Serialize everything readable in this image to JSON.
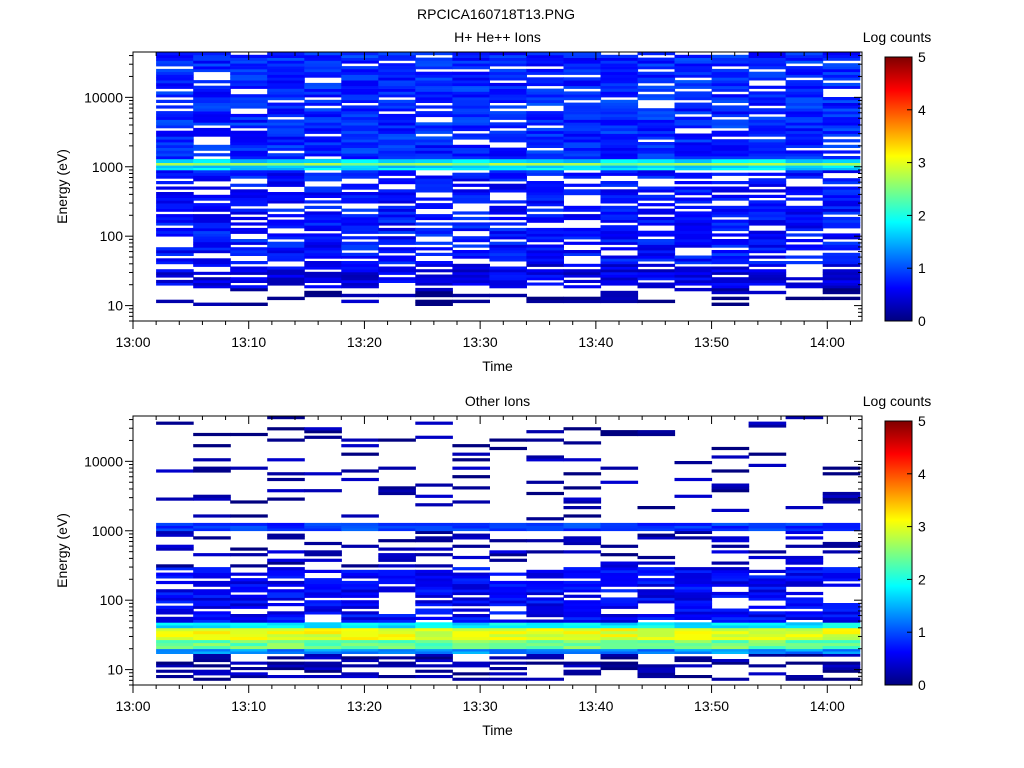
{
  "title": "RPCICA160718T13.PNG",
  "colors": {
    "background": "#ffffff",
    "axis": "#000000",
    "colormap": [
      "#00007f",
      "#0000ff",
      "#007fff",
      "#00ffff",
      "#7fff7f",
      "#ffff00",
      "#ff7f00",
      "#ff0000",
      "#7f0000"
    ]
  },
  "chart_data": [
    {
      "type": "heatmap",
      "title": "H+ He++ Ions",
      "xlabel": "Time",
      "ylabel": "Energy (eV)",
      "yscale": "log",
      "xlim": [
        "13:00",
        "14:03"
      ],
      "ylim": [
        6,
        45000
      ],
      "x_ticks": [
        "13:00",
        "13:10",
        "13:20",
        "13:30",
        "13:40",
        "13:50",
        "14:00"
      ],
      "y_ticks": [
        "10",
        "100",
        "1000",
        "10000"
      ],
      "colorbar": {
        "label": "Log counts",
        "range": [
          0,
          5
        ],
        "ticks": [
          "0",
          "1",
          "2",
          "3",
          "4",
          "5"
        ]
      },
      "time_bin_start": "13:02",
      "time_bin_minutes": 3.2,
      "time_bins": 19,
      "bands": [
        {
          "energy_range": [
            10,
            18
          ],
          "log_counts": 0.2,
          "coverage": 0.35
        },
        {
          "energy_range": [
            18,
            40
          ],
          "log_counts": 0.5,
          "coverage": 0.7
        },
        {
          "energy_range": [
            40,
            900
          ],
          "log_counts": 0.7,
          "coverage": 0.72
        },
        {
          "energy_range": [
            900,
            1050
          ],
          "log_counts": 1.7,
          "coverage": 1.0
        },
        {
          "energy_range": [
            1050,
            1150
          ],
          "log_counts": 2.6,
          "coverage": 1.0
        },
        {
          "energy_range": [
            1150,
            1300
          ],
          "log_counts": 1.7,
          "coverage": 1.0
        },
        {
          "energy_range": [
            1300,
            45000
          ],
          "log_counts": 0.8,
          "coverage": 0.85
        }
      ]
    },
    {
      "type": "heatmap",
      "title": "Other Ions",
      "xlabel": "Time",
      "ylabel": "Energy (eV)",
      "yscale": "log",
      "xlim": [
        "13:00",
        "14:03"
      ],
      "ylim": [
        6,
        45000
      ],
      "x_ticks": [
        "13:00",
        "13:10",
        "13:20",
        "13:30",
        "13:40",
        "13:50",
        "14:00"
      ],
      "y_ticks": [
        "10",
        "100",
        "1000",
        "10000"
      ],
      "colorbar": {
        "label": "Log counts",
        "range": [
          0,
          5
        ],
        "ticks": [
          "0",
          "1",
          "2",
          "3",
          "4",
          "5"
        ]
      },
      "time_bin_start": "13:02",
      "time_bin_minutes": 3.2,
      "time_bins": 19,
      "bands": [
        {
          "energy_range": [
            7,
            17
          ],
          "log_counts": 0.2,
          "coverage": 0.45
        },
        {
          "energy_range": [
            17,
            20
          ],
          "log_counts": 1.3,
          "coverage": 1.0
        },
        {
          "energy_range": [
            20,
            27
          ],
          "log_counts": 2.4,
          "coverage": 1.0
        },
        {
          "energy_range": [
            27,
            40
          ],
          "log_counts": 3.0,
          "coverage": 1.0
        },
        {
          "energy_range": [
            40,
            48
          ],
          "log_counts": 1.8,
          "coverage": 1.0
        },
        {
          "energy_range": [
            48,
            300
          ],
          "log_counts": 0.6,
          "coverage": 0.72
        },
        {
          "energy_range": [
            300,
            1000
          ],
          "log_counts": 0.25,
          "coverage": 0.3
        },
        {
          "energy_range": [
            1000,
            1300
          ],
          "log_counts": 0.9,
          "coverage": 1.0
        },
        {
          "energy_range": [
            1300,
            45000
          ],
          "log_counts": 0.15,
          "coverage": 0.12
        }
      ]
    }
  ]
}
